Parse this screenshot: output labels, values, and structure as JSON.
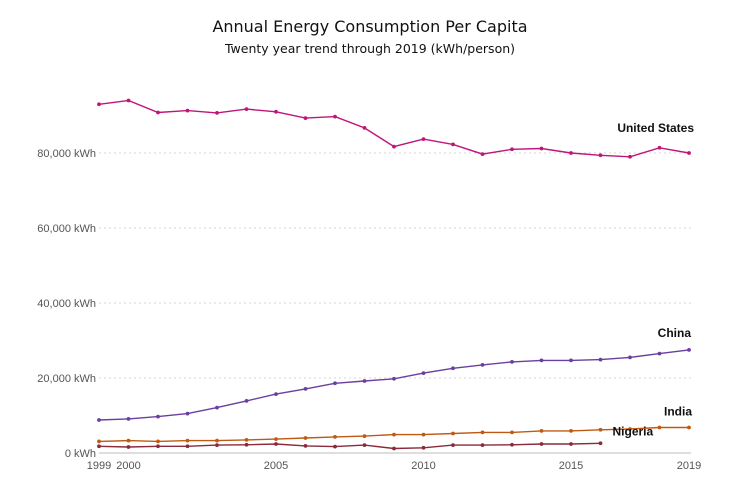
{
  "chart_data": {
    "type": "line",
    "title": "Annual Energy Consumption Per Capita",
    "subtitle": "Twenty year trend through 2019 (kWh/person)",
    "x": [
      1999,
      2000,
      2001,
      2002,
      2003,
      2004,
      2005,
      2006,
      2007,
      2008,
      2009,
      2010,
      2011,
      2012,
      2013,
      2014,
      2015,
      2016,
      2017,
      2018,
      2019
    ],
    "x_tick_labels": [
      "1999",
      "2000",
      "2005",
      "2010",
      "2015",
      "2019"
    ],
    "x_tick_values": [
      1999,
      2000,
      2005,
      2010,
      2015,
      2019
    ],
    "y_tick_labels": [
      "0 kWh",
      "20,000 kWh",
      "40,000 kWh",
      "60,000 kWh",
      "80,000 kWh"
    ],
    "y_tick_values": [
      0,
      20000,
      40000,
      60000,
      80000
    ],
    "ylim": [
      0,
      100000
    ],
    "xlim": [
      1999,
      2019
    ],
    "grid": true,
    "series": [
      {
        "name": "United States",
        "color": "#c0157a",
        "values": [
          93000,
          94000,
          90800,
          91300,
          90700,
          91700,
          91000,
          89300,
          89700,
          86700,
          81700,
          83700,
          82300,
          79700,
          81000,
          81200,
          80000,
          79400,
          79000,
          81400,
          80000
        ]
      },
      {
        "name": "China",
        "color": "#6a3fa0",
        "values": [
          8800,
          9100,
          9700,
          10500,
          12100,
          13900,
          15700,
          17100,
          18600,
          19200,
          19800,
          21300,
          22600,
          23500,
          24300,
          24700,
          24700,
          24900,
          25500,
          26500,
          27500
        ]
      },
      {
        "name": "India",
        "color": "#c05a12",
        "values": [
          3100,
          3300,
          3100,
          3300,
          3300,
          3500,
          3700,
          4000,
          4300,
          4500,
          4900,
          4900,
          5200,
          5500,
          5500,
          5900,
          5900,
          6200,
          6400,
          6800,
          6800
        ]
      },
      {
        "name": "Nigeria",
        "color": "#8a2a3a",
        "values": [
          1800,
          1600,
          1800,
          1800,
          2100,
          2200,
          2400,
          1900,
          1700,
          2100,
          1200,
          1400,
          2100,
          2100,
          2200,
          2400,
          2400,
          2600,
          null,
          null,
          null
        ]
      }
    ]
  }
}
